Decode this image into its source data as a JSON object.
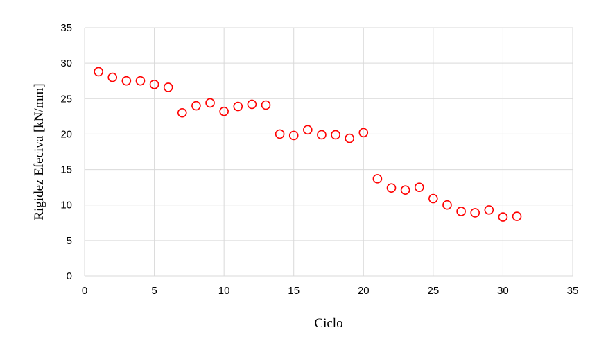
{
  "chart_data": {
    "type": "scatter",
    "xlabel": "Ciclo",
    "ylabel": "Rigidez Efeciva [kN/mm]",
    "xlim": [
      0,
      35
    ],
    "ylim": [
      0,
      35
    ],
    "x_ticks": [
      0,
      5,
      10,
      15,
      20,
      25,
      30,
      35
    ],
    "y_ticks": [
      0,
      5,
      10,
      15,
      20,
      25,
      30,
      35
    ],
    "grid": true,
    "legend": "none",
    "marker": "open-circle",
    "marker_color": "#ff0000",
    "series": [
      {
        "x": [
          1,
          2,
          3,
          4,
          5,
          6,
          7,
          8,
          9,
          10,
          11,
          12,
          13,
          14,
          15,
          16,
          17,
          18,
          19,
          20,
          21,
          22,
          23,
          24,
          25,
          26,
          27,
          28,
          29,
          30,
          31
        ],
        "y": [
          28.8,
          28.0,
          27.5,
          27.5,
          27.0,
          26.6,
          23.0,
          24.0,
          24.4,
          23.2,
          23.9,
          24.2,
          24.1,
          20.0,
          19.8,
          20.6,
          19.9,
          19.9,
          19.4,
          20.2,
          13.7,
          12.4,
          12.1,
          12.5,
          10.9,
          10.0,
          9.1,
          8.9,
          9.3,
          8.3,
          8.4
        ]
      }
    ]
  }
}
